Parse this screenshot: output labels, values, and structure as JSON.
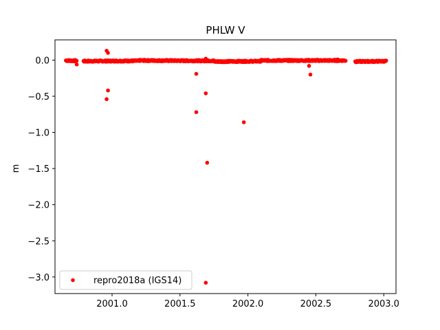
{
  "chart_data": {
    "type": "scatter",
    "title": "PHLW V",
    "xlabel": "",
    "ylabel": "m",
    "xlim": [
      2000.58,
      2003.09
    ],
    "ylim": [
      -3.23,
      0.28
    ],
    "xticks": [
      2001.0,
      2001.5,
      2002.0,
      2002.5,
      2003.0
    ],
    "xtick_labels": [
      "2001.0",
      "2001.5",
      "2002.0",
      "2002.5",
      "2003.0"
    ],
    "yticks": [
      0.0,
      -0.5,
      -1.0,
      -1.5,
      -2.0,
      -2.5,
      -3.0
    ],
    "ytick_labels": [
      "0.0",
      "−0.5",
      "−1.0",
      "−1.5",
      "−2.0",
      "−2.5",
      "−3.0"
    ],
    "grid": false,
    "legend_position": "lower-left",
    "series": [
      {
        "name": "repro2018a (IGS14)",
        "color": "#ff0000",
        "segments": [
          {
            "x_start": 2000.66,
            "x_end": 2000.74,
            "y_start": -0.005,
            "y_end": -0.01
          },
          {
            "x_start": 2000.79,
            "x_end": 2001.2,
            "y_start": -0.015,
            "y_end": -0.01
          },
          {
            "x_start": 2001.2,
            "x_end": 2001.75,
            "y_start": -0.005,
            "y_end": -0.01
          },
          {
            "x_start": 2001.75,
            "x_end": 2002.1,
            "y_start": -0.02,
            "y_end": -0.015
          },
          {
            "x_start": 2002.1,
            "x_end": 2002.72,
            "y_start": -0.005,
            "y_end": -0.005
          },
          {
            "x_start": 2002.79,
            "x_end": 2003.02,
            "y_start": -0.02,
            "y_end": -0.015
          }
        ],
        "outliers": [
          {
            "x": 2000.74,
            "y": -0.06
          },
          {
            "x": 2000.96,
            "y": 0.13
          },
          {
            "x": 2000.97,
            "y": 0.1
          },
          {
            "x": 2000.97,
            "y": -0.42
          },
          {
            "x": 2000.96,
            "y": -0.54
          },
          {
            "x": 2001.62,
            "y": -0.19
          },
          {
            "x": 2001.62,
            "y": -0.72
          },
          {
            "x": 2001.69,
            "y": -0.46
          },
          {
            "x": 2001.69,
            "y": 0.02
          },
          {
            "x": 2001.7,
            "y": -1.42
          },
          {
            "x": 2001.69,
            "y": -3.08
          },
          {
            "x": 2001.97,
            "y": -0.86
          },
          {
            "x": 2002.45,
            "y": -0.08
          },
          {
            "x": 2002.46,
            "y": -0.2
          },
          {
            "x": 2002.66,
            "y": 0.01
          }
        ]
      }
    ]
  }
}
